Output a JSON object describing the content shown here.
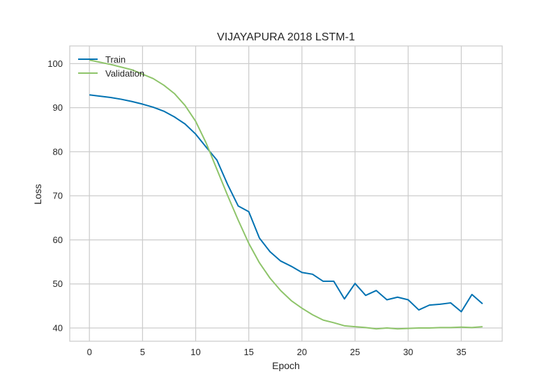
{
  "chart_data": {
    "type": "line",
    "title": "VIJAYAPURA 2018 LSTM-1",
    "xlabel": "Epoch",
    "ylabel": "Loss",
    "xlim": [
      -1.85,
      38.85
    ],
    "ylim": [
      37.0,
      104.0
    ],
    "x_ticks": [
      0,
      5,
      10,
      15,
      20,
      25,
      30,
      35
    ],
    "y_ticks": [
      40,
      50,
      60,
      70,
      80,
      90,
      100
    ],
    "grid": true,
    "legend_position": "top-left",
    "series": [
      {
        "name": "Train",
        "color": "#0072B2",
        "x": [
          0,
          1,
          2,
          3,
          4,
          5,
          6,
          7,
          8,
          9,
          10,
          11,
          12,
          13,
          14,
          15,
          16,
          17,
          18,
          19,
          20,
          21,
          22,
          23,
          24,
          25,
          26,
          27,
          28,
          29,
          30,
          31,
          32,
          33,
          34,
          35,
          36,
          37
        ],
        "values": [
          92.9,
          92.6,
          92.3,
          91.9,
          91.4,
          90.8,
          90.1,
          89.2,
          87.9,
          86.3,
          84.0,
          81.0,
          78.1,
          72.6,
          67.7,
          66.4,
          60.4,
          57.3,
          55.2,
          54.0,
          52.6,
          52.2,
          50.6,
          50.6,
          46.6,
          50.1,
          47.4,
          48.5,
          46.4,
          47.0,
          46.4,
          44.1,
          45.2,
          45.4,
          45.7,
          43.7,
          47.6,
          45.5
        ]
      },
      {
        "name": "Validation",
        "color": "#8EC46A",
        "x": [
          0,
          1,
          2,
          3,
          4,
          5,
          6,
          7,
          8,
          9,
          10,
          11,
          12,
          13,
          14,
          15,
          16,
          17,
          18,
          19,
          20,
          21,
          22,
          23,
          24,
          25,
          26,
          27,
          28,
          29,
          30,
          31,
          32,
          33,
          34,
          35,
          36,
          37
        ],
        "values": [
          100.8,
          100.3,
          99.8,
          99.2,
          98.6,
          97.6,
          96.6,
          95.1,
          93.2,
          90.5,
          86.9,
          81.9,
          76.0,
          70.1,
          64.5,
          59.2,
          54.8,
          51.3,
          48.5,
          46.2,
          44.5,
          43.0,
          41.8,
          41.2,
          40.5,
          40.3,
          40.1,
          39.8,
          40.0,
          39.8,
          39.9,
          40.0,
          40.0,
          40.1,
          40.1,
          40.2,
          40.1,
          40.3
        ]
      }
    ]
  }
}
